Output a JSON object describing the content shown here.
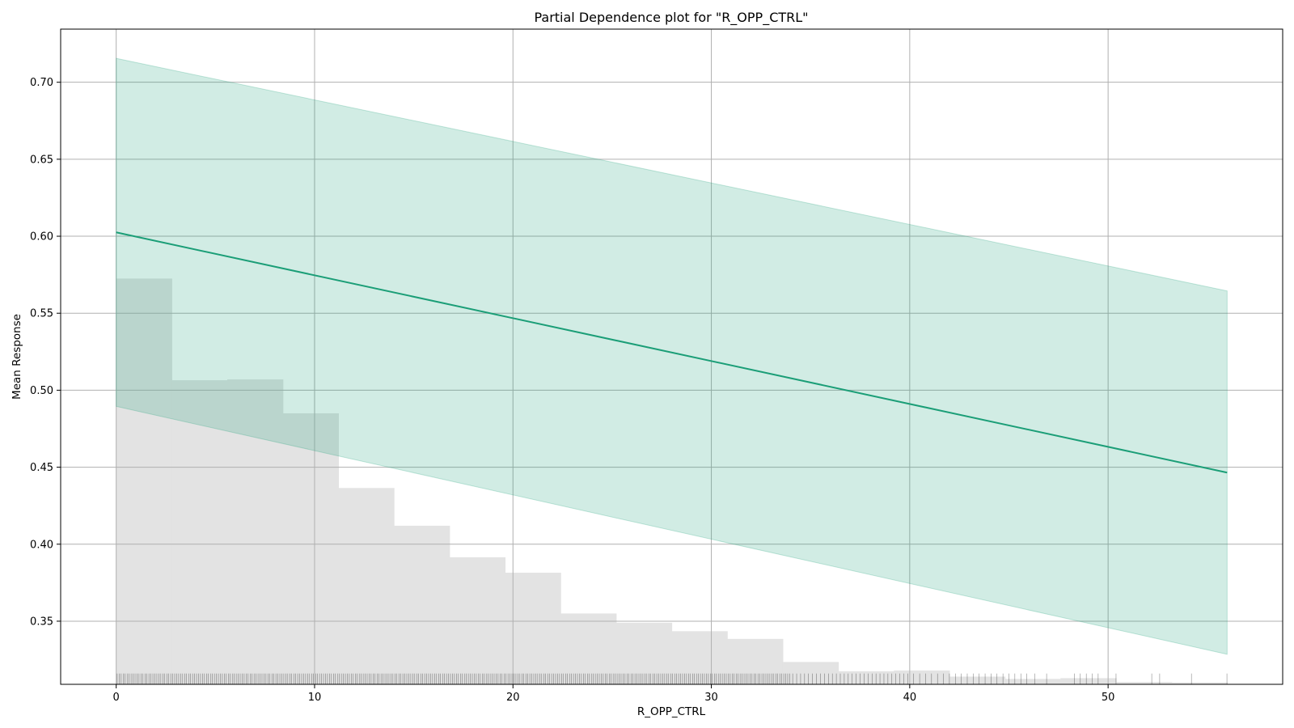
{
  "chart_data": {
    "type": "line",
    "title": "Partial Dependence plot for \"R_OPP_CTRL\"",
    "xlabel": "R_OPP_CTRL",
    "ylabel": "Mean Response",
    "xlim": [
      -2.8,
      58.8
    ],
    "ylim": [
      0.309,
      0.7345
    ],
    "grid": true,
    "legend": "none",
    "x_ticks": [
      0,
      10,
      20,
      30,
      40,
      50
    ],
    "y_ticks": [
      0.35,
      0.4,
      0.45,
      0.5,
      0.55,
      0.6,
      0.65,
      0.7
    ],
    "x_tick_labels": [
      "0",
      "10",
      "20",
      "30",
      "40",
      "50"
    ],
    "y_tick_labels": [
      "0.35",
      "0.40",
      "0.45",
      "0.50",
      "0.55",
      "0.60",
      "0.65",
      "0.70"
    ],
    "series": [
      {
        "x": [
          0,
          56
        ],
        "y": [
          0.6025,
          0.4465
        ],
        "lower": [
          0.4895,
          0.3285
        ],
        "upper": [
          0.7155,
          0.5645
        ]
      }
    ],
    "histogram": {
      "bin_edges": [
        0,
        2.8,
        5.6,
        8.4,
        11.2,
        14.0,
        16.8,
        19.6,
        22.4,
        25.2,
        28.0,
        30.8,
        33.6,
        36.4,
        39.2,
        42.0,
        44.8,
        47.6,
        50.4,
        53.2,
        56.0
      ],
      "tops": [
        0.5725,
        0.5065,
        0.507,
        0.485,
        0.4365,
        0.412,
        0.3915,
        0.3815,
        0.355,
        0.349,
        0.3435,
        0.3385,
        0.3235,
        0.3175,
        0.318,
        0.314,
        0.3125,
        0.313,
        0.3105,
        0.3102
      ]
    },
    "rug": {
      "y_top": 0.316,
      "x": [
        0.05,
        0.15,
        0.25,
        0.35,
        0.45,
        0.55,
        0.65,
        0.75,
        0.85,
        0.95,
        1.05,
        1.15,
        1.25,
        1.35,
        1.45,
        1.55,
        1.65,
        1.75,
        1.85,
        1.95,
        2.05,
        2.15,
        2.25,
        2.35,
        2.45,
        2.55,
        2.65,
        2.75,
        2.85,
        2.95,
        3.05,
        3.15,
        3.25,
        3.35,
        3.45,
        3.55,
        3.65,
        3.75,
        3.85,
        3.95,
        4.05,
        4.15,
        4.25,
        4.35,
        4.45,
        4.55,
        4.65,
        4.75,
        4.85,
        4.95,
        5.05,
        5.15,
        5.25,
        5.35,
        5.45,
        5.55,
        5.65,
        5.75,
        5.85,
        5.95,
        6.05,
        6.15,
        6.25,
        6.35,
        6.45,
        6.55,
        6.65,
        6.75,
        6.85,
        6.95,
        7.05,
        7.15,
        7.25,
        7.35,
        7.45,
        7.55,
        7.65,
        7.75,
        7.85,
        7.95,
        8.05,
        8.15,
        8.25,
        8.35,
        8.45,
        8.55,
        8.65,
        8.75,
        8.85,
        8.95,
        9.05,
        9.15,
        9.25,
        9.35,
        9.45,
        9.55,
        9.65,
        9.75,
        9.85,
        9.95,
        10.05,
        10.15,
        10.25,
        10.35,
        10.45,
        10.55,
        10.65,
        10.75,
        10.85,
        10.95,
        11.05,
        11.15,
        11.25,
        11.35,
        11.45,
        11.55,
        11.65,
        11.75,
        11.85,
        11.95,
        12.05,
        12.15,
        12.25,
        12.35,
        12.45,
        12.55,
        12.65,
        12.75,
        12.85,
        12.95,
        13.05,
        13.15,
        13.25,
        13.35,
        13.45,
        13.55,
        13.65,
        13.75,
        13.85,
        13.95,
        14.05,
        14.15,
        14.25,
        14.35,
        14.45,
        14.55,
        14.65,
        14.75,
        14.85,
        14.95,
        15.05,
        15.15,
        15.25,
        15.35,
        15.45,
        15.55,
        15.65,
        15.75,
        15.85,
        15.95,
        16.05,
        16.15,
        16.25,
        16.35,
        16.45,
        16.55,
        16.65,
        16.75,
        16.85,
        16.95,
        17.05,
        17.15,
        17.25,
        17.35,
        17.45,
        17.55,
        17.65,
        17.75,
        17.85,
        17.95,
        18.05,
        18.15,
        18.25,
        18.35,
        18.45,
        18.55,
        18.65,
        18.75,
        18.85,
        18.95,
        19.05,
        19.15,
        19.25,
        19.35,
        19.45,
        19.55,
        19.65,
        19.75,
        19.85,
        19.95,
        20.05,
        20.15,
        20.25,
        20.35,
        20.45,
        20.55,
        20.65,
        20.75,
        20.85,
        20.95,
        21.05,
        21.15,
        21.25,
        21.35,
        21.45,
        21.55,
        21.65,
        21.75,
        21.85,
        21.95,
        22.05,
        22.15,
        22.25,
        22.35,
        22.45,
        22.55,
        22.65,
        22.75,
        22.85,
        22.95,
        23.05,
        23.15,
        23.25,
        23.35,
        23.45,
        23.55,
        23.65,
        23.75,
        23.85,
        23.95,
        24.05,
        24.15,
        24.25,
        24.35,
        24.45,
        24.55,
        24.65,
        24.75,
        24.85,
        24.95,
        25.05,
        25.15,
        25.25,
        25.35,
        25.45,
        25.55,
        25.65,
        25.75,
        25.85,
        25.95,
        26.05,
        26.15,
        26.25,
        26.35,
        26.45,
        26.55,
        26.65,
        26.75,
        26.85,
        26.95,
        27.05,
        27.15,
        27.25,
        27.35,
        27.45,
        27.55,
        27.65,
        27.75,
        27.85,
        27.95,
        28.05,
        28.15,
        28.25,
        28.35,
        28.45,
        28.55,
        28.65,
        28.75,
        28.85,
        28.95,
        29.05,
        29.15,
        29.25,
        29.35,
        29.45,
        29.55,
        29.65,
        29.75,
        29.85,
        29.95,
        30.05,
        30.15,
        30.25,
        30.35,
        30.45,
        30.55,
        30.65,
        30.75,
        30.85,
        30.95,
        31.05,
        31.15,
        31.25,
        31.35,
        31.45,
        31.55,
        31.65,
        31.75,
        31.85,
        31.95,
        32.05,
        32.15,
        32.25,
        32.35,
        32.45,
        32.55,
        32.65,
        32.75,
        32.85,
        32.95,
        33.05,
        33.15,
        33.25,
        33.35,
        33.45,
        33.55,
        33.65,
        33.75,
        33.85,
        33.95,
        34.1,
        34.3,
        34.5,
        34.7,
        34.9,
        35.1,
        35.3,
        35.5,
        35.7,
        35.9,
        36.1,
        36.3,
        36.5,
        36.7,
        36.9,
        37.1,
        37.3,
        37.5,
        37.7,
        37.9,
        38.1,
        38.3,
        38.5,
        38.7,
        38.9,
        39.1,
        39.3,
        39.5,
        39.7,
        39.9,
        40.2,
        40.5,
        40.8,
        41.1,
        41.4,
        41.7,
        42.0,
        42.3,
        42.6,
        42.9,
        43.2,
        43.5,
        43.8,
        44.1,
        44.4,
        44.7,
        45.0,
        45.3,
        45.6,
        45.9,
        46.3,
        46.9,
        48.3,
        48.6,
        48.9,
        49.2,
        49.5,
        50.4,
        52.2,
        52.6,
        54.2,
        55.99
      ]
    }
  }
}
